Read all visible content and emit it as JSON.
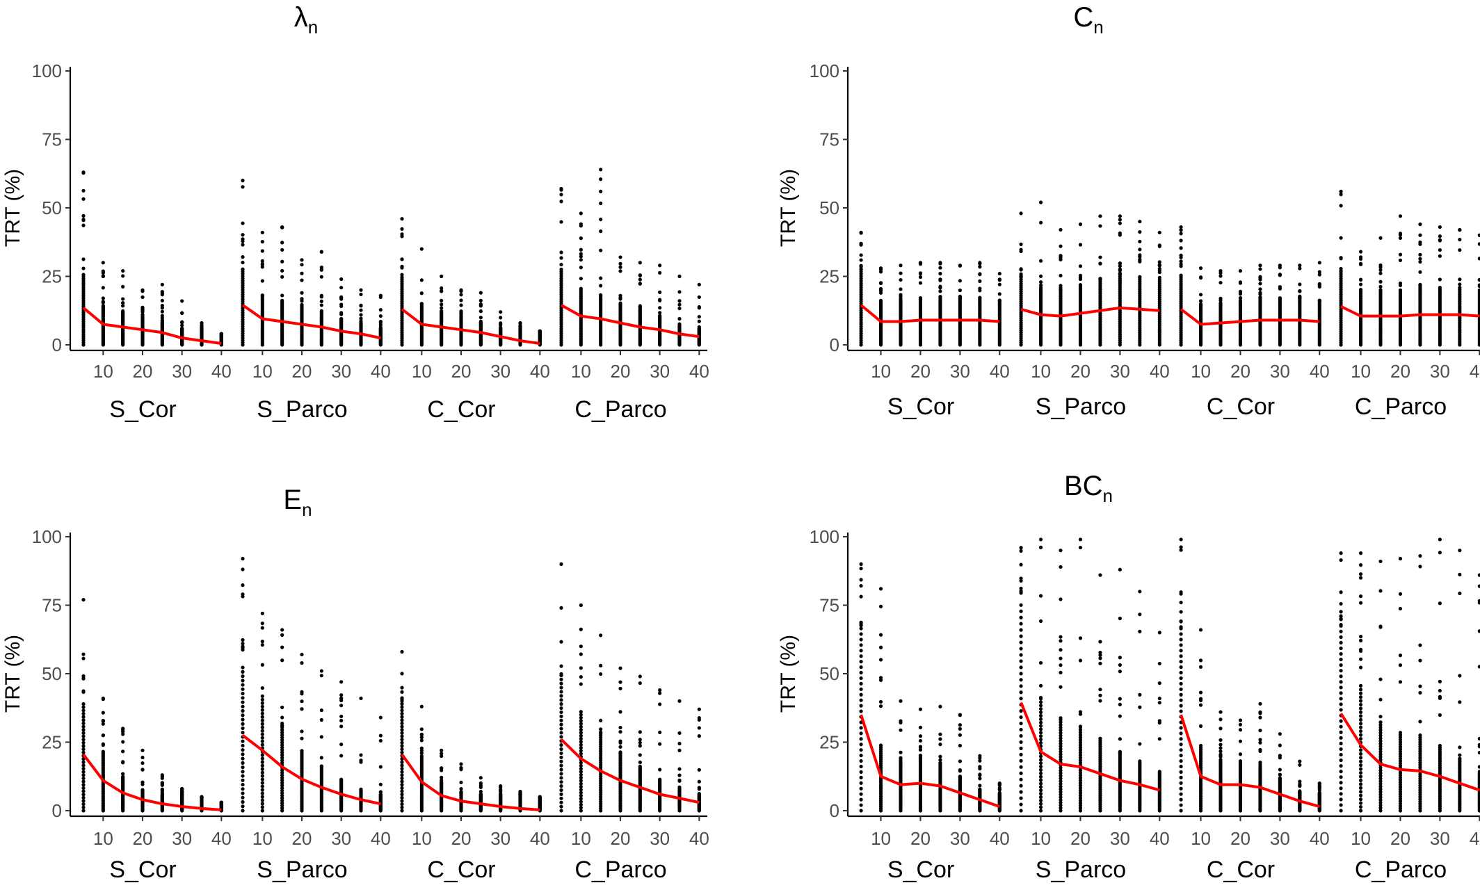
{
  "chart_data": [
    {
      "type": "scatter",
      "title": "λ",
      "title_sub": "n",
      "ylabel": "TRT (%)",
      "ylim": [
        0,
        100
      ],
      "yticks": [
        0,
        25,
        50,
        75,
        100
      ],
      "xticks": [
        10,
        20,
        30,
        40
      ],
      "x": [
        5,
        10,
        15,
        20,
        25,
        30,
        35,
        40
      ],
      "grid": false,
      "facets": [
        {
          "label": "S_Cor",
          "line": [
            13.5,
            7.5,
            6.5,
            5.5,
            4.5,
            2.5,
            1.5,
            0.5
          ],
          "max": [
            63,
            30,
            27,
            20,
            22,
            16,
            8,
            4
          ]
        },
        {
          "label": "S_Parco",
          "line": [
            14.5,
            9.5,
            8.5,
            7.5,
            6.5,
            5,
            4,
            2.5
          ],
          "max": [
            60,
            41,
            43,
            31,
            34,
            24,
            20,
            18
          ]
        },
        {
          "label": "C_Cor",
          "line": [
            13,
            7.5,
            6.5,
            5.5,
            4.5,
            3,
            1.5,
            0.5
          ],
          "max": [
            46,
            35,
            25,
            20,
            19,
            12,
            8,
            5
          ]
        },
        {
          "label": "C_Parco",
          "line": [
            14.5,
            10.5,
            9.5,
            8,
            6.5,
            5.5,
            4,
            3
          ],
          "max": [
            57,
            48,
            64,
            32,
            30,
            29,
            25,
            22
          ]
        }
      ]
    },
    {
      "type": "scatter",
      "title": "C",
      "title_sub": "n",
      "ylabel": "TRT (%)",
      "ylim": [
        0,
        100
      ],
      "yticks": [
        0,
        25,
        50,
        75,
        100
      ],
      "xticks": [
        10,
        20,
        30,
        40
      ],
      "x": [
        5,
        10,
        15,
        20,
        25,
        30,
        35,
        40
      ],
      "grid": false,
      "facets": [
        {
          "label": "S_Cor",
          "line": [
            14.5,
            8.5,
            8.5,
            9,
            9,
            9,
            9,
            8.5
          ],
          "max": [
            41,
            28,
            29,
            30,
            30,
            29,
            30,
            26
          ]
        },
        {
          "label": "S_Parco",
          "line": [
            13,
            11,
            10.5,
            11.5,
            12.5,
            13.5,
            13,
            12.5
          ],
          "max": [
            48,
            52,
            42,
            44,
            47,
            47,
            45,
            41
          ]
        },
        {
          "label": "C_Cor",
          "line": [
            13,
            7.5,
            8,
            8.5,
            9,
            9,
            9,
            8.5
          ],
          "max": [
            43,
            28,
            27,
            27,
            29,
            29,
            29,
            30
          ]
        },
        {
          "label": "C_Parco",
          "line": [
            14,
            10.5,
            10.5,
            10.5,
            11,
            11,
            11,
            10.5
          ],
          "max": [
            56,
            34,
            39,
            47,
            44,
            43,
            42,
            40
          ]
        }
      ]
    },
    {
      "type": "scatter",
      "title": "E",
      "title_sub": "n",
      "ylabel": "TRT (%)",
      "ylim": [
        0,
        100
      ],
      "yticks": [
        0,
        25,
        50,
        75,
        100
      ],
      "xticks": [
        10,
        20,
        30,
        40
      ],
      "x": [
        5,
        10,
        15,
        20,
        25,
        30,
        35,
        40
      ],
      "grid": false,
      "facets": [
        {
          "label": "S_Cor",
          "line": [
            20.5,
            11,
            6.5,
            4,
            2.5,
            1.5,
            0.8,
            0.3
          ],
          "max": [
            77,
            41,
            30,
            22,
            13,
            8,
            5,
            3
          ]
        },
        {
          "label": "S_Parco",
          "line": [
            27.5,
            22,
            16,
            11.5,
            8.5,
            6,
            4,
            2.5
          ],
          "max": [
            92,
            72,
            66,
            57,
            51,
            47,
            41,
            34
          ]
        },
        {
          "label": "C_Cor",
          "line": [
            20.5,
            10.5,
            5.5,
            3.5,
            2.5,
            1.5,
            0.8,
            0.3
          ],
          "max": [
            58,
            38,
            22,
            17,
            12,
            9,
            7,
            5
          ]
        },
        {
          "label": "C_Parco",
          "line": [
            26,
            19,
            14.5,
            11,
            8.5,
            6,
            4.5,
            3
          ],
          "max": [
            90,
            75,
            64,
            52,
            49,
            44,
            40,
            37
          ]
        }
      ]
    },
    {
      "type": "scatter",
      "title": "BC",
      "title_sub": "n",
      "ylabel": "TRT (%)",
      "ylim": [
        0,
        100
      ],
      "yticks": [
        0,
        25,
        50,
        75,
        100
      ],
      "xticks": [
        10,
        20,
        30,
        40
      ],
      "x": [
        5,
        10,
        15,
        20,
        25,
        30,
        35,
        40
      ],
      "grid": false,
      "facets": [
        {
          "label": "S_Cor",
          "line": [
            35,
            12.5,
            9.5,
            10,
            9,
            6.5,
            4,
            1.5
          ],
          "max": [
            90,
            81,
            40,
            37,
            38,
            35,
            20,
            10
          ]
        },
        {
          "label": "S_Parco",
          "line": [
            39.5,
            21.5,
            17,
            16,
            13.5,
            11,
            9.5,
            7.5
          ],
          "max": [
            96,
            99,
            95,
            99,
            86,
            88,
            80,
            65
          ]
        },
        {
          "label": "C_Cor",
          "line": [
            35,
            12.5,
            9.5,
            9.5,
            8.5,
            6,
            3.5,
            1.5
          ],
          "max": [
            99,
            66,
            36,
            33,
            39,
            28,
            18,
            10
          ]
        },
        {
          "label": "C_Parco",
          "line": [
            35.5,
            24,
            17,
            15,
            14.5,
            12.5,
            10,
            7.5
          ],
          "max": [
            94,
            94,
            91,
            92,
            93,
            99,
            95,
            86
          ]
        }
      ]
    }
  ]
}
